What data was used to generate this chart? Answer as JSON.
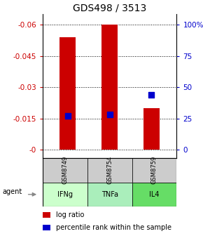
{
  "title": "GDS498 / 3513",
  "samples": [
    "GSM8749",
    "GSM8754",
    "GSM8759"
  ],
  "agents": [
    "IFNg",
    "TNFa",
    "IL4"
  ],
  "log_ratios": [
    -0.054,
    -0.06,
    -0.02
  ],
  "percentile_ranks": [
    27,
    28,
    44
  ],
  "bar_color": "#cc0000",
  "dot_color": "#0000cc",
  "left_yticks": [
    0.0,
    -0.015,
    -0.03,
    -0.045,
    -0.06
  ],
  "left_ylabels": [
    "-0",
    "-0.015",
    "-0.03",
    "-0.045",
    "-0.06"
  ],
  "right_yticks": [
    100,
    75,
    50,
    25,
    0
  ],
  "right_ylabels": [
    "100%",
    "75",
    "50",
    "25",
    "0"
  ],
  "ymin": -0.065,
  "ymax": 0.004,
  "agent_colors": [
    "#ccffcc",
    "#aaeebb",
    "#66dd66"
  ],
  "gsm_bg": "#cccccc",
  "legend_log_ratio": "log ratio",
  "legend_pct": "percentile rank within the sample",
  "agent_label": "agent",
  "title_fontsize": 10,
  "tick_fontsize": 7.5,
  "legend_fontsize": 7
}
